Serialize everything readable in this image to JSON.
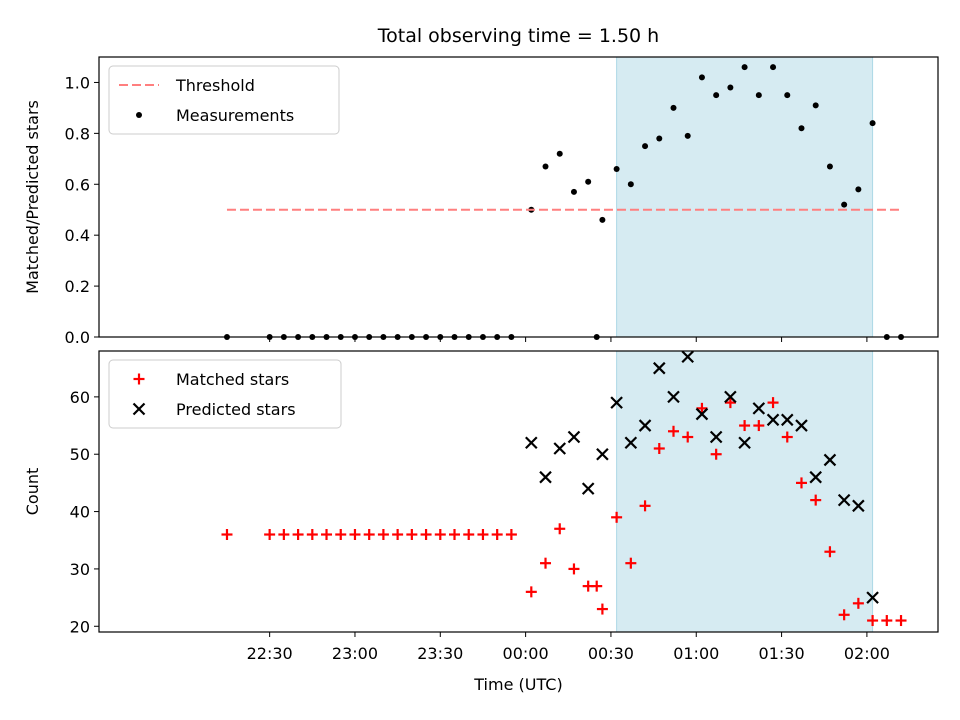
{
  "chart_data": [
    {
      "type": "scatter",
      "title": "Total observing time = 1.50 h",
      "ylabel": "Matched/Predicted stars",
      "xlabel": "",
      "ylim": [
        0,
        1.1
      ],
      "yticks": [
        "0.0",
        "0.2",
        "0.4",
        "0.6",
        "0.8",
        "1.0"
      ],
      "highlight_span": {
        "start": "00:32",
        "end": "02:02",
        "color": "#add8e6"
      },
      "series": [
        {
          "name": "Measurements",
          "marker": "dot",
          "color": "#000000",
          "points": [
            [
              "22:15",
              0
            ],
            [
              "22:30",
              0
            ],
            [
              "22:35",
              0
            ],
            [
              "22:40",
              0
            ],
            [
              "22:45",
              0
            ],
            [
              "22:50",
              0
            ],
            [
              "22:55",
              0
            ],
            [
              "23:00",
              0
            ],
            [
              "23:05",
              0
            ],
            [
              "23:10",
              0
            ],
            [
              "23:15",
              0
            ],
            [
              "23:20",
              0
            ],
            [
              "23:25",
              0
            ],
            [
              "23:30",
              0
            ],
            [
              "23:35",
              0
            ],
            [
              "23:40",
              0
            ],
            [
              "23:45",
              0
            ],
            [
              "23:50",
              0
            ],
            [
              "23:55",
              0
            ],
            [
              "00:02",
              0.5
            ],
            [
              "00:07",
              0.67
            ],
            [
              "00:12",
              0.72
            ],
            [
              "00:17",
              0.57
            ],
            [
              "00:22",
              0.61
            ],
            [
              "00:25",
              0
            ],
            [
              "00:27",
              0.46
            ],
            [
              "00:32",
              0.66
            ],
            [
              "00:37",
              0.6
            ],
            [
              "00:42",
              0.75
            ],
            [
              "00:47",
              0.78
            ],
            [
              "00:52",
              0.9
            ],
            [
              "00:57",
              0.79
            ],
            [
              "01:02",
              1.02
            ],
            [
              "01:07",
              0.95
            ],
            [
              "01:12",
              0.98
            ],
            [
              "01:17",
              1.06
            ],
            [
              "01:22",
              0.95
            ],
            [
              "01:27",
              1.06
            ],
            [
              "01:32",
              0.95
            ],
            [
              "01:37",
              0.82
            ],
            [
              "01:42",
              0.91
            ],
            [
              "01:47",
              0.67
            ],
            [
              "01:52",
              0.52
            ],
            [
              "01:57",
              0.58
            ],
            [
              "02:02",
              0.84
            ],
            [
              "02:07",
              0
            ],
            [
              "02:12",
              0
            ]
          ]
        },
        {
          "name": "Threshold",
          "line": "dashed",
          "color": "#ff7f7f",
          "points": [
            [
              "22:15",
              0.5
            ],
            [
              "02:12",
              0.5
            ]
          ]
        }
      ],
      "legend": {
        "placement": "upper left",
        "entries": [
          "Threshold",
          "Measurements"
        ]
      }
    },
    {
      "type": "scatter",
      "xlabel": "Time (UTC)",
      "ylabel": "Count",
      "ylim": [
        19,
        68
      ],
      "yticks": [
        "20",
        "30",
        "40",
        "50",
        "60"
      ],
      "xticks": [
        "22:30",
        "23:00",
        "23:30",
        "00:00",
        "00:30",
        "01:00",
        "01:30",
        "02:00"
      ],
      "highlight_span": {
        "start": "00:32",
        "end": "02:02",
        "color": "#add8e6"
      },
      "series": [
        {
          "name": "Matched stars",
          "marker": "plus",
          "color": "#ff0000",
          "points": [
            [
              "22:15",
              36
            ],
            [
              "22:30",
              36
            ],
            [
              "22:35",
              36
            ],
            [
              "22:40",
              36
            ],
            [
              "22:45",
              36
            ],
            [
              "22:50",
              36
            ],
            [
              "22:55",
              36
            ],
            [
              "23:00",
              36
            ],
            [
              "23:05",
              36
            ],
            [
              "23:10",
              36
            ],
            [
              "23:15",
              36
            ],
            [
              "23:20",
              36
            ],
            [
              "23:25",
              36
            ],
            [
              "23:30",
              36
            ],
            [
              "23:35",
              36
            ],
            [
              "23:40",
              36
            ],
            [
              "23:45",
              36
            ],
            [
              "23:50",
              36
            ],
            [
              "23:55",
              36
            ],
            [
              "00:02",
              26
            ],
            [
              "00:07",
              31
            ],
            [
              "00:12",
              37
            ],
            [
              "00:17",
              30
            ],
            [
              "00:22",
              27
            ],
            [
              "00:25",
              27
            ],
            [
              "00:27",
              23
            ],
            [
              "00:32",
              39
            ],
            [
              "00:37",
              31
            ],
            [
              "00:42",
              41
            ],
            [
              "00:47",
              51
            ],
            [
              "00:52",
              54
            ],
            [
              "00:57",
              53
            ],
            [
              "01:02",
              58
            ],
            [
              "01:07",
              50
            ],
            [
              "01:12",
              59
            ],
            [
              "01:17",
              55
            ],
            [
              "01:22",
              55
            ],
            [
              "01:27",
              59
            ],
            [
              "01:32",
              53
            ],
            [
              "01:37",
              45
            ],
            [
              "01:42",
              42
            ],
            [
              "01:47",
              33
            ],
            [
              "01:52",
              22
            ],
            [
              "01:57",
              24
            ],
            [
              "02:02",
              21
            ],
            [
              "02:07",
              21
            ],
            [
              "02:12",
              21
            ]
          ]
        },
        {
          "name": "Predicted stars",
          "marker": "x",
          "color": "#000000",
          "points": [
            [
              "00:02",
              52
            ],
            [
              "00:07",
              46
            ],
            [
              "00:12",
              51
            ],
            [
              "00:17",
              53
            ],
            [
              "00:22",
              44
            ],
            [
              "00:27",
              50
            ],
            [
              "00:32",
              59
            ],
            [
              "00:37",
              52
            ],
            [
              "00:42",
              55
            ],
            [
              "00:47",
              65
            ],
            [
              "00:52",
              60
            ],
            [
              "00:57",
              67
            ],
            [
              "01:02",
              57
            ],
            [
              "01:07",
              53
            ],
            [
              "01:12",
              60
            ],
            [
              "01:17",
              52
            ],
            [
              "01:22",
              58
            ],
            [
              "01:27",
              56
            ],
            [
              "01:32",
              56
            ],
            [
              "01:37",
              55
            ],
            [
              "01:42",
              46
            ],
            [
              "01:47",
              49
            ],
            [
              "01:52",
              42
            ],
            [
              "01:57",
              41
            ],
            [
              "02:02",
              25
            ]
          ]
        }
      ],
      "legend": {
        "placement": "upper left",
        "entries": [
          "Matched stars",
          "Predicted stars"
        ]
      }
    }
  ]
}
